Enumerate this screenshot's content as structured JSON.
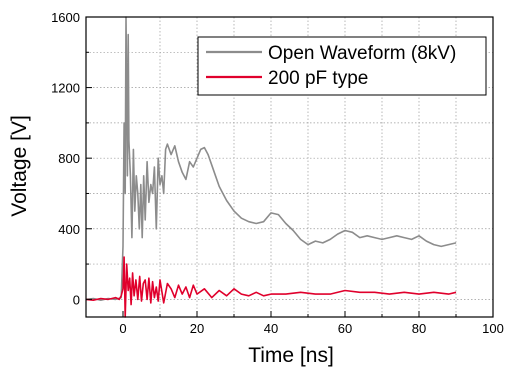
{
  "chart_data": {
    "type": "line",
    "xlabel": "Time [ns]",
    "ylabel": "Voltage [V]",
    "xlim": [
      -10,
      100
    ],
    "ylim": [
      -100,
      1600
    ],
    "xticks": [
      0,
      20,
      40,
      60,
      80,
      100
    ],
    "yticks": [
      0,
      400,
      800,
      1200,
      1600
    ],
    "grid": true,
    "legend_position": "top-right",
    "series": [
      {
        "name": "Open Waveform (8kV)",
        "color": "#8c8c8c",
        "x": [
          -10,
          -8,
          -6,
          -4,
          -2,
          -0.5,
          0,
          0.3,
          0.6,
          0.8,
          1.0,
          1.2,
          1.4,
          1.6,
          2.0,
          2.4,
          2.8,
          3.2,
          3.6,
          4.0,
          4.4,
          4.8,
          5.2,
          5.6,
          6.0,
          6.5,
          7.0,
          7.5,
          8.0,
          8.5,
          9.0,
          9.5,
          10,
          10.5,
          11,
          11.5,
          12,
          13,
          14,
          15,
          16,
          17,
          18,
          19,
          20,
          21,
          22,
          23,
          24,
          25,
          26,
          27,
          28,
          30,
          32,
          34,
          36,
          38,
          40,
          42,
          44,
          46,
          48,
          50,
          52,
          54,
          56,
          58,
          60,
          62,
          64,
          66,
          68,
          70,
          72,
          74,
          76,
          78,
          80,
          82,
          84,
          86,
          88,
          90
        ],
        "values": [
          0,
          5,
          -5,
          5,
          0,
          10,
          300,
          1000,
          600,
          1600,
          1200,
          700,
          1500,
          900,
          700,
          350,
          850,
          500,
          700,
          600,
          400,
          650,
          350,
          700,
          450,
          780,
          550,
          650,
          600,
          750,
          400,
          800,
          650,
          700,
          600,
          850,
          880,
          820,
          870,
          780,
          720,
          680,
          780,
          750,
          800,
          850,
          860,
          820,
          760,
          700,
          640,
          600,
          560,
          500,
          460,
          440,
          430,
          440,
          490,
          480,
          430,
          390,
          340,
          310,
          330,
          320,
          340,
          370,
          390,
          380,
          350,
          360,
          350,
          340,
          350,
          360,
          350,
          340,
          360,
          330,
          310,
          300,
          310,
          320
        ]
      },
      {
        "name": "200 pF type",
        "color": "#e0002c",
        "x": [
          -10,
          -8,
          -6,
          -4,
          -2,
          -1,
          -0.5,
          0,
          0.3,
          0.6,
          1.0,
          1.4,
          1.8,
          2.2,
          2.6,
          3.0,
          3.5,
          4.0,
          4.5,
          5.0,
          5.5,
          6,
          6.5,
          7,
          7.5,
          8,
          8.5,
          9,
          9.5,
          10,
          11,
          12,
          13,
          14,
          15,
          16,
          17,
          18,
          19,
          20,
          22,
          24,
          26,
          28,
          30,
          32,
          34,
          36,
          38,
          40,
          44,
          48,
          52,
          56,
          60,
          64,
          68,
          72,
          76,
          80,
          84,
          88,
          90
        ],
        "values": [
          0,
          -5,
          5,
          0,
          10,
          0,
          20,
          60,
          240,
          -100,
          200,
          50,
          120,
          -30,
          150,
          20,
          110,
          0,
          130,
          -10,
          90,
          110,
          0,
          120,
          -20,
          100,
          10,
          70,
          -10,
          110,
          -20,
          90,
          60,
          10,
          80,
          30,
          70,
          10,
          80,
          30,
          60,
          10,
          50,
          20,
          60,
          30,
          20,
          40,
          20,
          30,
          30,
          40,
          30,
          30,
          50,
          40,
          40,
          30,
          40,
          30,
          40,
          30,
          40
        ]
      }
    ]
  }
}
